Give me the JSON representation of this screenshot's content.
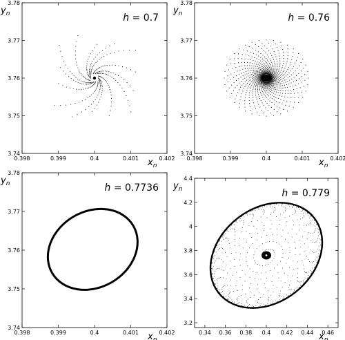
{
  "chart_data": [
    {
      "type": "scatter",
      "title": "h = 0.7",
      "xlabel": "x_n",
      "ylabel": "y_n",
      "xlim": [
        0.398,
        0.402
      ],
      "ylim": [
        3.74,
        3.78
      ],
      "xticks": [
        "0.398",
        "0.399",
        "0.4",
        "0.401",
        "0.402"
      ],
      "yticks": [
        "3.74",
        "3.75",
        "3.76",
        "3.77",
        "3.78"
      ],
      "pattern": "trajectories converging radially to fixed point",
      "fixed_point": [
        0.4,
        3.76
      ],
      "grid": false
    },
    {
      "type": "scatter",
      "title": "h = 0.76",
      "xlabel": "x_n",
      "ylabel": "y_n",
      "xlim": [
        0.398,
        0.402
      ],
      "ylim": [
        3.74,
        3.78
      ],
      "xticks": [
        "0.398",
        "0.399",
        "0.4",
        "0.401",
        "0.402"
      ],
      "yticks": [
        "3.74",
        "3.75",
        "3.76",
        "3.77",
        "3.78"
      ],
      "pattern": "trajectories spiraling in to fixed point",
      "fixed_point": [
        0.4,
        3.76
      ],
      "grid": false
    },
    {
      "type": "line",
      "title": "h = 0.7736",
      "xlabel": "x_n",
      "ylabel": "y_n",
      "xlim": [
        0.398,
        0.402
      ],
      "ylim": [
        3.74,
        3.78
      ],
      "xticks": [
        "0.398",
        "0.399",
        "0.4",
        "0.401",
        "0.402"
      ],
      "yticks": [
        "3.74",
        "3.75",
        "3.76",
        "3.77",
        "3.78"
      ],
      "pattern": "closed invariant curve (ellipse)",
      "center": [
        0.39995,
        3.7602
      ],
      "grid": false
    },
    {
      "type": "scatter",
      "title": "h = 0.779",
      "xlabel": "x_n",
      "ylabel": "y_n",
      "xlim": [
        0.33,
        0.47
      ],
      "ylim": [
        3.16,
        4.4
      ],
      "xticks": [
        "0.34",
        "0.36",
        "0.38",
        "0.4",
        "0.42",
        "0.44",
        "0.46"
      ],
      "yticks": [
        "3.2",
        "3.4",
        "3.6",
        "3.8",
        "4",
        "4.2",
        "4.4"
      ],
      "pattern": "spiral trajectory inside large invariant ellipse",
      "center": [
        0.4,
        3.76
      ],
      "grid": false
    }
  ]
}
